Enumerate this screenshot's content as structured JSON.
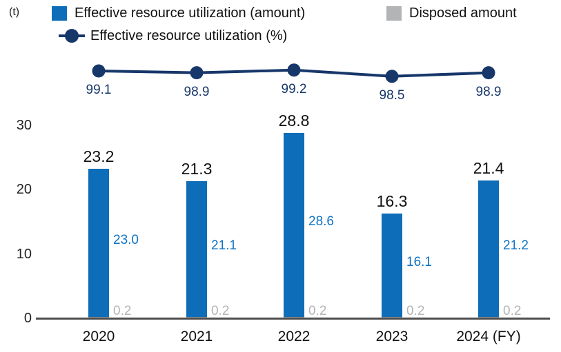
{
  "unit_label": "(t)",
  "legend": {
    "amount": {
      "label": "Effective resource utilization (amount)"
    },
    "disposed": {
      "label": "Disposed amount"
    },
    "percent": {
      "label": "Effective resource utilization (%)"
    }
  },
  "colors": {
    "bar_blue": "#0d6db8",
    "value_blue": "#0f72c4",
    "navy": "#17376a",
    "gray": "#b2b4b6",
    "disposed_gray": "#9a9da0",
    "axis": "#4d4d4d",
    "text_black": "#111111"
  },
  "chart_data": {
    "type": "bar",
    "subtype": "stacked bars with overlaid line (secondary % axis, not drawn)",
    "categories": [
      "2020",
      "2021",
      "2022",
      "2023",
      "2024 (FY)"
    ],
    "series": [
      {
        "name": "Effective resource utilization (amount)",
        "type": "bar",
        "color": "#0d6db8",
        "values": [
          23.0,
          21.1,
          28.6,
          16.1,
          21.2
        ]
      },
      {
        "name": "Disposed amount",
        "type": "bar",
        "color": "#b2b4b6",
        "values": [
          0.2,
          0.2,
          0.2,
          0.2,
          0.2
        ]
      },
      {
        "name": "Effective resource utilization (%)",
        "type": "line",
        "color": "#17376a",
        "values": [
          99.1,
          98.9,
          99.2,
          98.5,
          98.9
        ]
      }
    ],
    "totals": [
      23.2,
      21.3,
      28.8,
      16.3,
      21.4
    ],
    "ylabel": "(t)",
    "yticks": [
      0,
      10,
      20,
      30
    ],
    "ylim": [
      0,
      32
    ],
    "grid": false,
    "legend_position": "top-left, two rows"
  }
}
